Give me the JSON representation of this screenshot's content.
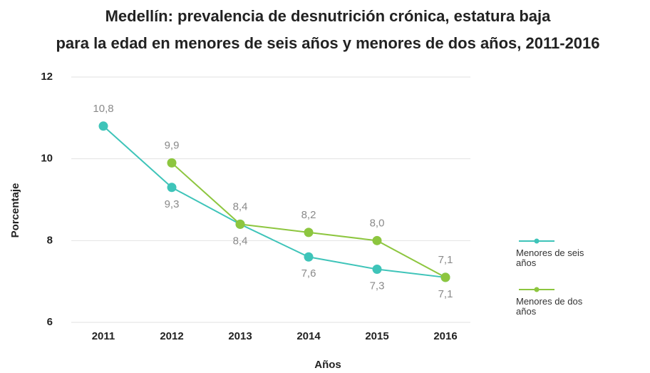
{
  "chart_data": {
    "type": "line",
    "title": [
      "Medellín: prevalencia de desnutrición crónica, estatura baja",
      "para la edad en menores de seis años y menores de dos años, 2011-2016"
    ],
    "x_label": "Años",
    "y_label": "Porcentaje",
    "categories": [
      "2011",
      "2012",
      "2013",
      "2014",
      "2015",
      "2016"
    ],
    "series": [
      {
        "name": "Menores de seis años",
        "color": "#3ec4b9",
        "values": [
          10.8,
          9.3,
          8.4,
          7.6,
          7.3,
          7.1
        ],
        "value_labels": [
          "10,8",
          "9,3",
          "8,4",
          "7,6",
          "7,3",
          "7,1"
        ]
      },
      {
        "name": "Menores de dos años",
        "color": "#8dc63f",
        "values": [
          null,
          9.9,
          8.4,
          8.2,
          8.0,
          7.1
        ],
        "value_labels": [
          null,
          "9,9",
          "8,4",
          "8,2",
          "8,0",
          "7,1"
        ]
      }
    ],
    "ylim": [
      6,
      12
    ],
    "yticks": [
      6,
      8,
      10,
      12
    ],
    "grid": true,
    "legend": "right"
  }
}
